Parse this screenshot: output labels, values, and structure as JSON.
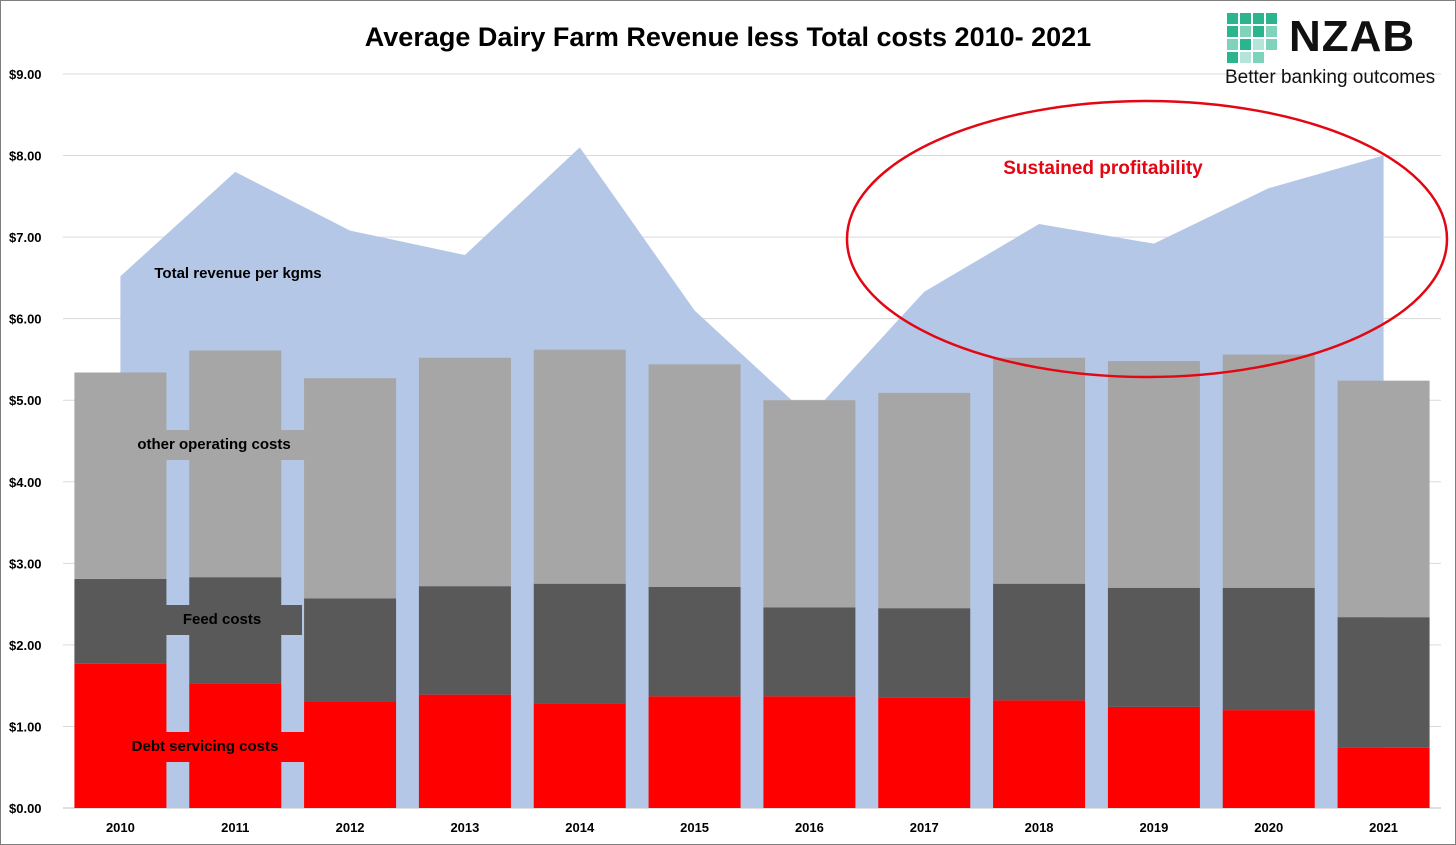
{
  "colors": {
    "revenue": "#b4c7e7",
    "other_operating": "#a6a6a6",
    "feed": "#595959",
    "debt": "#ff0000",
    "annotation": "#e30613",
    "logo_teal": "#2bb58e"
  },
  "logo": {
    "name": "NZAB",
    "tagline": "Better banking outcomes"
  },
  "annotation": {
    "text": "Sustained profitability",
    "shape": "ellipse"
  },
  "chart_data": {
    "type": "bar",
    "stacked": true,
    "title": "Average Dairy Farm Revenue less Total costs 2010- 2021",
    "categories": [
      "2010",
      "2011",
      "2012",
      "2013",
      "2014",
      "2015",
      "2016",
      "2017",
      "2018",
      "2019",
      "2020",
      "2021"
    ],
    "yticks": [
      "$0.00",
      "$1.00",
      "$2.00",
      "$3.00",
      "$4.00",
      "$5.00",
      "$6.00",
      "$7.00",
      "$8.00",
      "$9.00"
    ],
    "ylim": [
      0,
      9
    ],
    "grid": true,
    "area_series": {
      "name": "Total revenue per kgms",
      "type": "area",
      "values": [
        6.52,
        7.8,
        7.08,
        6.78,
        8.1,
        6.1,
        4.8,
        6.33,
        7.16,
        6.92,
        7.6,
        8.0
      ]
    },
    "series": [
      {
        "name": "Debt servicing costs",
        "values": [
          1.77,
          1.53,
          1.31,
          1.39,
          1.28,
          1.37,
          1.37,
          1.35,
          1.32,
          1.24,
          1.2,
          0.74
        ]
      },
      {
        "name": "Feed costs",
        "values": [
          1.04,
          1.3,
          1.26,
          1.33,
          1.47,
          1.34,
          1.09,
          1.1,
          1.43,
          1.46,
          1.5,
          1.6
        ]
      },
      {
        "name": "other operating costs",
        "values": [
          2.53,
          2.78,
          2.7,
          2.8,
          2.87,
          2.73,
          2.54,
          2.64,
          2.77,
          2.78,
          2.86,
          2.9
        ]
      }
    ]
  }
}
